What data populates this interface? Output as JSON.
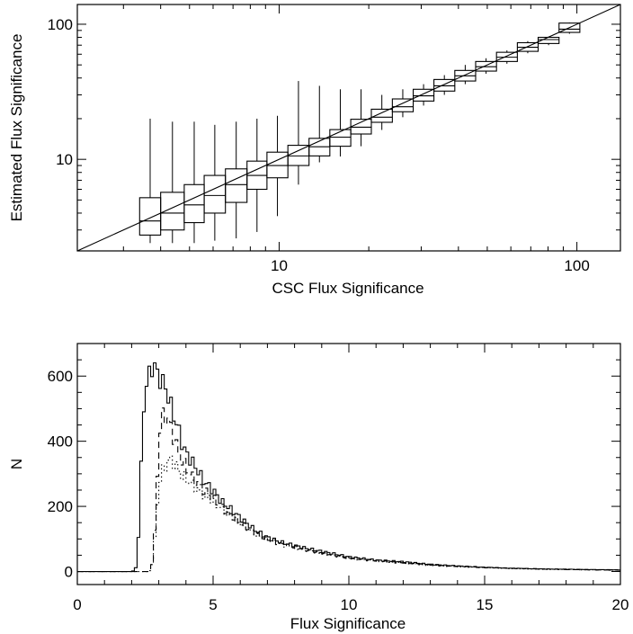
{
  "chart_data": [
    {
      "type": "box",
      "xlabel": "CSC Flux Significance",
      "ylabel": "Estimated Flux Significance",
      "xscale": "log",
      "yscale": "log",
      "xlim": [
        2.1,
        140
      ],
      "ylim": [
        2.1,
        140
      ],
      "xticks": [
        {
          "value": 10,
          "label": "10"
        },
        {
          "value": 100,
          "label": "100"
        }
      ],
      "yticks": [
        {
          "value": 10,
          "label": "10"
        },
        {
          "value": 100,
          "label": "100"
        }
      ],
      "reference_line": "y = x",
      "boxes": [
        {
          "x0": 3.4,
          "x1": 4.0,
          "q1": 2.75,
          "median": 3.5,
          "q3": 5.2,
          "low": 2.4,
          "high": 20
        },
        {
          "x0": 4.0,
          "x1": 4.8,
          "q1": 3.0,
          "median": 4.0,
          "q3": 5.7,
          "low": 2.4,
          "high": 19
        },
        {
          "x0": 4.8,
          "x1": 5.6,
          "q1": 3.4,
          "median": 4.6,
          "q3": 6.5,
          "low": 2.4,
          "high": 19
        },
        {
          "x0": 5.6,
          "x1": 6.6,
          "q1": 4.0,
          "median": 5.4,
          "q3": 7.6,
          "low": 2.5,
          "high": 18
        },
        {
          "x0": 6.6,
          "x1": 7.8,
          "q1": 4.8,
          "median": 6.5,
          "q3": 8.5,
          "low": 2.6,
          "high": 19
        },
        {
          "x0": 7.8,
          "x1": 9.1,
          "q1": 6.0,
          "median": 7.6,
          "q3": 9.7,
          "low": 2.9,
          "high": 20
        },
        {
          "x0": 9.1,
          "x1": 10.7,
          "q1": 7.3,
          "median": 9.0,
          "q3": 11.3,
          "low": 3.8,
          "high": 21
        },
        {
          "x0": 10.7,
          "x1": 12.6,
          "q1": 9.0,
          "median": 10.6,
          "q3": 12.7,
          "low": 6.5,
          "high": 38
        },
        {
          "x0": 12.6,
          "x1": 14.8,
          "q1": 10.6,
          "median": 12.4,
          "q3": 14.3,
          "low": 9.5,
          "high": 35
        },
        {
          "x0": 14.8,
          "x1": 17.4,
          "q1": 12.5,
          "median": 14.6,
          "q3": 16.6,
          "low": 10.5,
          "high": 33
        },
        {
          "x0": 17.4,
          "x1": 20.4,
          "q1": 15.4,
          "median": 17.3,
          "q3": 19.8,
          "low": 12.5,
          "high": 33
        },
        {
          "x0": 20.4,
          "x1": 24.0,
          "q1": 18.8,
          "median": 20.5,
          "q3": 23.5,
          "low": 16.5,
          "high": 30
        },
        {
          "x0": 24.0,
          "x1": 28.2,
          "q1": 22.5,
          "median": 24.5,
          "q3": 28.0,
          "low": 20.5,
          "high": 33
        },
        {
          "x0": 28.2,
          "x1": 33.1,
          "q1": 27.0,
          "median": 29.5,
          "q3": 33.0,
          "low": 25,
          "high": 36
        },
        {
          "x0": 33.1,
          "x1": 38.9,
          "q1": 32.0,
          "median": 35.0,
          "q3": 39.0,
          "low": 30,
          "high": 42
        },
        {
          "x0": 38.9,
          "x1": 45.7,
          "q1": 38.0,
          "median": 41.5,
          "q3": 45.5,
          "low": 36,
          "high": 50
        },
        {
          "x0": 45.7,
          "x1": 53.7,
          "q1": 45.0,
          "median": 48.5,
          "q3": 53.0,
          "low": 43,
          "high": 56
        },
        {
          "x0": 53.7,
          "x1": 63.1,
          "q1": 53.0,
          "median": 57.0,
          "q3": 62.0,
          "low": 51,
          "high": 64
        },
        {
          "x0": 63.1,
          "x1": 74.1,
          "q1": 63.0,
          "median": 67.5,
          "q3": 73.0,
          "low": 61,
          "high": 75
        },
        {
          "x0": 74.1,
          "x1": 87.1,
          "q1": 72.0,
          "median": 77.0,
          "q3": 80.0,
          "low": 70,
          "high": 81
        },
        {
          "x0": 87.1,
          "x1": 102.3,
          "q1": 87.0,
          "median": 92.0,
          "q3": 102.0,
          "low": 85,
          "high": 103
        }
      ]
    },
    {
      "type": "histogram",
      "xlabel": "Flux Significance",
      "ylabel": "N",
      "xlim": [
        0,
        20
      ],
      "ylim": [
        -40,
        700
      ],
      "xticks": [
        0,
        5,
        10,
        15,
        20
      ],
      "yticks": [
        0,
        200,
        400,
        600
      ],
      "bin_width": 0.1,
      "series": [
        {
          "style": "solid",
          "curve": [
            [
              0,
              0
            ],
            [
              2.0,
              0
            ],
            [
              2.1,
              3
            ],
            [
              2.2,
              20
            ],
            [
              2.3,
              200
            ],
            [
              2.4,
              440
            ],
            [
              2.5,
              570
            ],
            [
              2.6,
              590
            ],
            [
              2.7,
              605
            ],
            [
              2.8,
              660
            ],
            [
              2.9,
              600
            ],
            [
              3.0,
              605
            ],
            [
              3.1,
              590
            ],
            [
              3.2,
              565
            ],
            [
              3.3,
              560
            ],
            [
              3.4,
              520
            ],
            [
              3.5,
              490
            ],
            [
              3.6,
              470
            ],
            [
              3.7,
              440
            ],
            [
              3.8,
              415
            ],
            [
              3.9,
              380
            ],
            [
              4.0,
              365
            ],
            [
              4.2,
              340
            ],
            [
              4.4,
              315
            ],
            [
              4.6,
              285
            ],
            [
              4.8,
              265
            ],
            [
              5.0,
              250
            ],
            [
              5.3,
              215
            ],
            [
              5.6,
              195
            ],
            [
              6.0,
              165
            ],
            [
              6.5,
              130
            ],
            [
              7.0,
              105
            ],
            [
              7.5,
              90
            ],
            [
              8.0,
              80
            ],
            [
              8.5,
              70
            ],
            [
              9.0,
              62
            ],
            [
              10,
              45
            ],
            [
              11,
              35
            ],
            [
              12,
              30
            ],
            [
              13,
              22
            ],
            [
              14,
              17
            ],
            [
              15,
              13
            ],
            [
              16,
              10
            ],
            [
              17,
              8
            ],
            [
              18,
              7
            ],
            [
              19,
              6
            ],
            [
              20,
              5
            ]
          ]
        },
        {
          "style": "dashed",
          "curve": [
            [
              0,
              0
            ],
            [
              2.6,
              0
            ],
            [
              2.7,
              5
            ],
            [
              2.8,
              40
            ],
            [
              2.9,
              200
            ],
            [
              3.0,
              400
            ],
            [
              3.1,
              470
            ],
            [
              3.2,
              480
            ],
            [
              3.3,
              475
            ],
            [
              3.4,
              455
            ],
            [
              3.5,
              430
            ],
            [
              3.6,
              400
            ],
            [
              3.7,
              375
            ],
            [
              3.8,
              350
            ],
            [
              4.0,
              320
            ],
            [
              4.2,
              295
            ],
            [
              4.4,
              275
            ],
            [
              4.6,
              255
            ],
            [
              4.8,
              240
            ],
            [
              5.0,
              225
            ],
            [
              5.5,
              185
            ],
            [
              6.0,
              150
            ],
            [
              6.5,
              120
            ],
            [
              7.0,
              100
            ],
            [
              7.5,
              85
            ],
            [
              8.0,
              75
            ],
            [
              9.0,
              58
            ],
            [
              10,
              42
            ],
            [
              11,
              33
            ],
            [
              12,
              27
            ],
            [
              13,
              20
            ],
            [
              14,
              16
            ],
            [
              15,
              12
            ],
            [
              16,
              10
            ],
            [
              17,
              8
            ],
            [
              18,
              6
            ],
            [
              19,
              5
            ],
            [
              20,
              4
            ]
          ]
        },
        {
          "style": "dotted",
          "curve": [
            [
              0,
              0
            ],
            [
              2.6,
              0
            ],
            [
              2.7,
              5
            ],
            [
              2.8,
              40
            ],
            [
              2.9,
              160
            ],
            [
              3.0,
              260
            ],
            [
              3.1,
              300
            ],
            [
              3.2,
              320
            ],
            [
              3.3,
              330
            ],
            [
              3.4,
              345
            ],
            [
              3.5,
              340
            ],
            [
              3.6,
              330
            ],
            [
              3.7,
              315
            ],
            [
              3.8,
              300
            ],
            [
              4.0,
              285
            ],
            [
              4.2,
              270
            ],
            [
              4.4,
              255
            ],
            [
              4.6,
              240
            ],
            [
              4.8,
              228
            ],
            [
              5.0,
              215
            ],
            [
              5.5,
              180
            ],
            [
              6.0,
              148
            ],
            [
              6.5,
              118
            ],
            [
              7.0,
              98
            ],
            [
              7.5,
              83
            ],
            [
              8.0,
              73
            ],
            [
              9.0,
              56
            ],
            [
              10,
              40
            ],
            [
              11,
              32
            ],
            [
              12,
              26
            ],
            [
              13,
              19
            ],
            [
              14,
              15
            ],
            [
              15,
              12
            ],
            [
              16,
              9
            ],
            [
              17,
              7
            ],
            [
              18,
              6
            ],
            [
              19,
              5
            ],
            [
              20,
              4
            ]
          ]
        }
      ]
    }
  ]
}
